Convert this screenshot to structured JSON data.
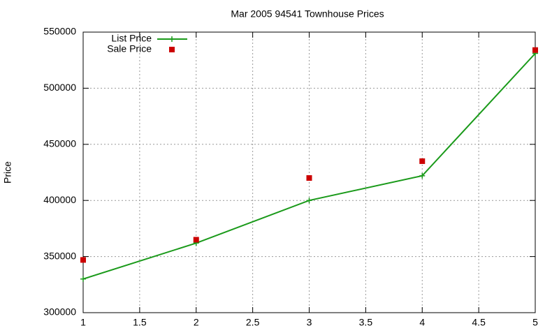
{
  "chart_data": {
    "type": "line",
    "title": "Mar 2005 94541 Townhouse Prices",
    "y_label": "Price",
    "x": [
      1,
      2,
      3,
      4,
      5
    ],
    "series": [
      {
        "name": "List Price",
        "color": "#1a9a1a",
        "mode": "lines+points",
        "values": [
          330000,
          362000,
          400000,
          422000,
          531000
        ]
      },
      {
        "name": "Sale Price",
        "color": "#cc0000",
        "mode": "points",
        "values": [
          347000,
          365000,
          420000,
          435000,
          534000
        ]
      }
    ],
    "xlim": [
      1,
      5
    ],
    "xticks": [
      1,
      1.5,
      2,
      2.5,
      3,
      3.5,
      4,
      4.5,
      5
    ],
    "ylim": [
      300000,
      550000
    ],
    "yticks": [
      300000,
      350000,
      400000,
      450000,
      500000,
      550000
    ],
    "grid": true,
    "legend": "top-left"
  }
}
